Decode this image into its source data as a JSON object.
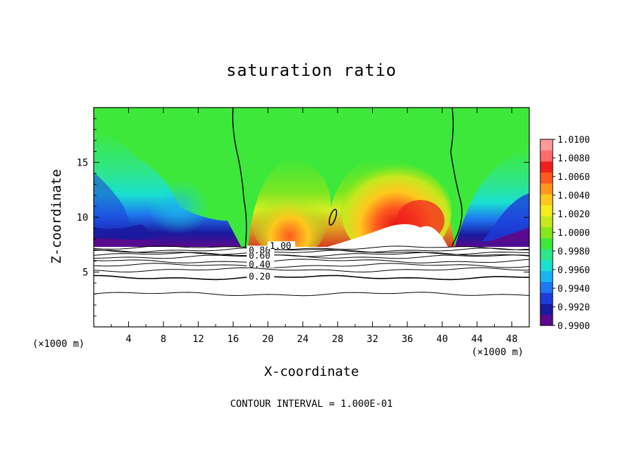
{
  "chart_data": {
    "type": "heatmap",
    "title": "saturation ratio",
    "xlabel": "X-coordinate",
    "ylabel": "Z-coordinate",
    "x_unit": "(×1000 m)",
    "y_unit": "(×1000 m)",
    "footer": "CONTOUR INTERVAL = 1.000E-01",
    "xlim": [
      0,
      50
    ],
    "ylim": [
      0,
      20
    ],
    "x_ticks": [
      4,
      8,
      12,
      16,
      20,
      24,
      28,
      32,
      36,
      40,
      44,
      48
    ],
    "y_ticks": [
      5,
      10,
      15
    ],
    "colorbar": {
      "min": 0.99,
      "max": 1.01,
      "ticks": [
        "1.0100",
        "1.0080",
        "1.0060",
        "1.0040",
        "1.0020",
        "1.0000",
        "0.9980",
        "0.9960",
        "0.9940",
        "0.9920",
        "0.9900"
      ],
      "colors": [
        "#5a0a8c",
        "#1a1aa0",
        "#1e3cd8",
        "#1e78f0",
        "#1ab4f0",
        "#1ae0d0",
        "#2ee68a",
        "#3ee83a",
        "#86e61e",
        "#c6e81e",
        "#f0ee1e",
        "#ffc81e",
        "#ff961e",
        "#ff5a1e",
        "#f01e1e",
        "#ff6a6a",
        "#ff9a9a"
      ]
    },
    "contours": [
      {
        "level": "0.20",
        "z": 4.5
      },
      {
        "level": "0.40",
        "z": 5.6
      },
      {
        "level": "0.60",
        "z": 6.4
      },
      {
        "level": "0.80",
        "z": 6.8
      },
      {
        "level": "1.00",
        "z": 7.2
      }
    ],
    "contour_labels": [
      "0.20",
      "0.40",
      "0.60",
      "0.80",
      "1.00"
    ]
  }
}
